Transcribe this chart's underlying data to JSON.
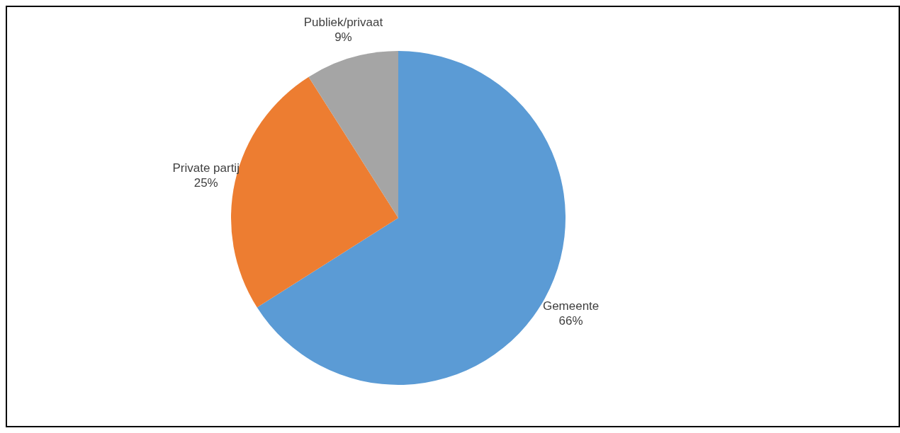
{
  "chart_data": {
    "type": "pie",
    "categories": [
      "Gemeente",
      "Private partij",
      "Publiek/privaat"
    ],
    "values": [
      66,
      25,
      9
    ],
    "value_labels": [
      "66%",
      "25%",
      "9%"
    ],
    "colors": [
      "#5b9bd5",
      "#ed7d31",
      "#a5a5a5"
    ],
    "legend": false
  }
}
